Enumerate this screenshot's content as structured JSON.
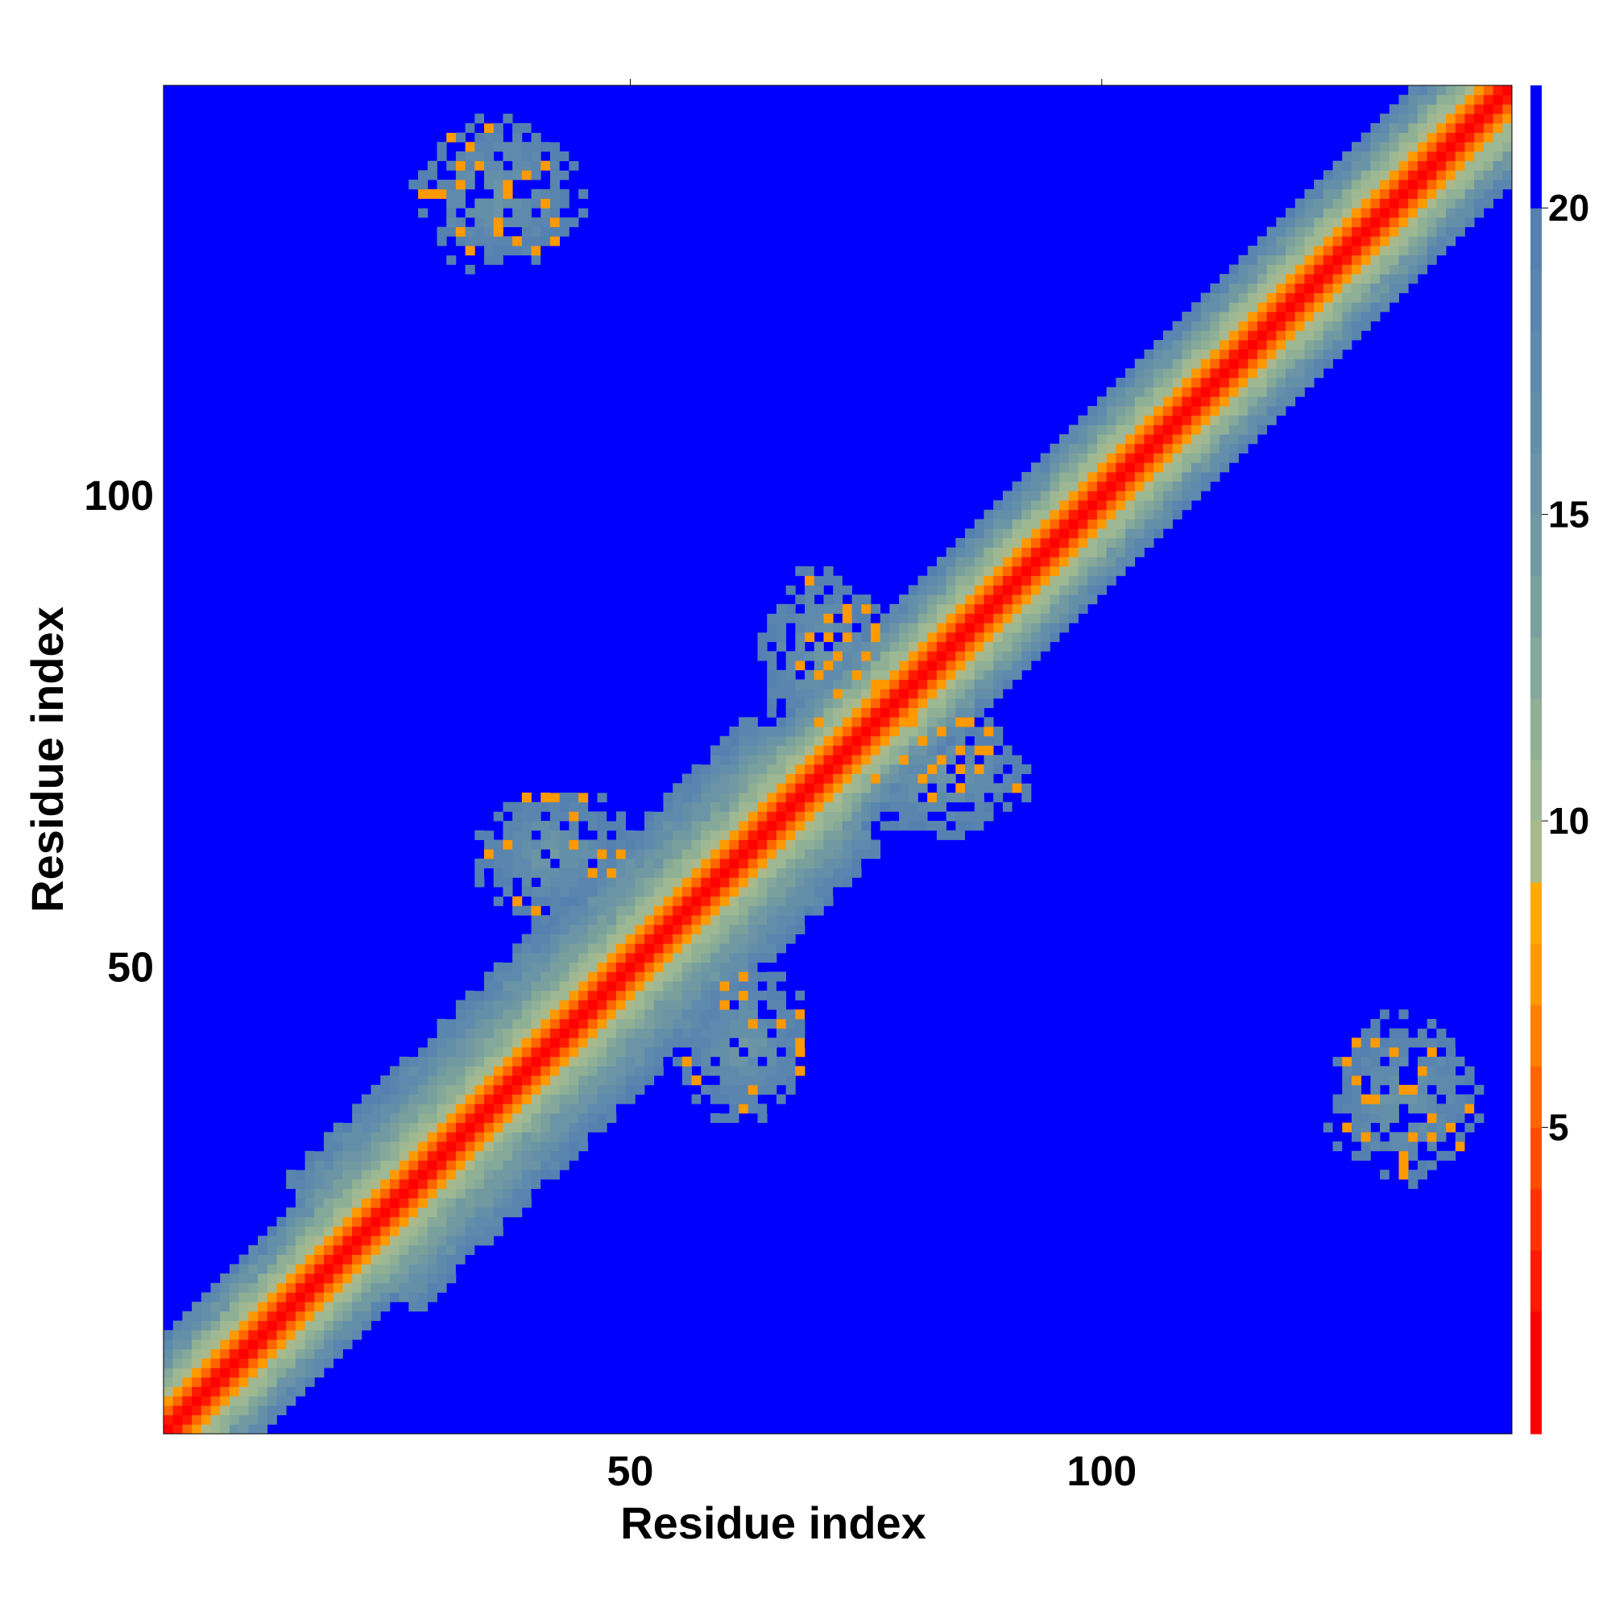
{
  "chart_data": {
    "type": "heatmap",
    "title": "",
    "xlabel": "Residue index",
    "ylabel": "Residue index",
    "n_residues": 143,
    "xlim": [
      1,
      143
    ],
    "ylim": [
      1,
      143
    ],
    "x_ticks": [
      50,
      100
    ],
    "y_ticks": [
      50,
      100
    ],
    "colorbar": {
      "min": 0,
      "max": 22,
      "ticks": [
        5,
        10,
        15,
        20
      ],
      "colors": [
        {
          "upto": 2,
          "color": "#ff0000"
        },
        {
          "upto": 3,
          "color": "#ff1a00"
        },
        {
          "upto": 4,
          "color": "#ff3300"
        },
        {
          "upto": 5,
          "color": "#ff4d00"
        },
        {
          "upto": 6,
          "color": "#ff6600"
        },
        {
          "upto": 7,
          "color": "#ff8000"
        },
        {
          "upto": 8,
          "color": "#ff9900"
        },
        {
          "upto": 9,
          "color": "#ffaa00"
        },
        {
          "upto": 10,
          "color": "#a9b98c"
        },
        {
          "upto": 11,
          "color": "#9db893"
        },
        {
          "upto": 12,
          "color": "#8fb095"
        },
        {
          "upto": 13,
          "color": "#84a89a"
        },
        {
          "upto": 14,
          "color": "#7aa09e"
        },
        {
          "upto": 15,
          "color": "#7199a2"
        },
        {
          "upto": 16,
          "color": "#6b94a6"
        },
        {
          "upto": 17,
          "color": "#648fa9"
        },
        {
          "upto": 18,
          "color": "#5e8aad"
        },
        {
          "upto": 19,
          "color": "#5985af"
        },
        {
          "upto": 20,
          "color": "#5581b1"
        },
        {
          "upto": 22,
          "color": "#0000ff"
        }
      ]
    },
    "diagonal_band": {
      "description_values": "distance grows with |i-j|",
      "red_width": 1.5,
      "orange_width": 2.5,
      "green_width": 7,
      "steel_width": 10
    },
    "contact_clusters": [
      {
        "i_center": 36,
        "j_center": 132,
        "i_range": [
          26,
          47
        ],
        "j_range": [
          123,
          142
        ]
      },
      {
        "i_center": 132,
        "j_center": 36,
        "i_range": [
          123,
          142
        ],
        "j_range": [
          26,
          47
        ]
      },
      {
        "i_center": 42,
        "j_center": 62,
        "i_range": [
          30,
          50
        ],
        "j_range": [
          53,
          70
        ]
      },
      {
        "i_center": 62,
        "j_center": 42,
        "i_range": [
          53,
          70
        ],
        "j_range": [
          30,
          50
        ]
      },
      {
        "i_center": 70,
        "j_center": 83,
        "i_range": [
          64,
          80
        ],
        "j_range": [
          70,
          92
        ]
      },
      {
        "i_center": 83,
        "j_center": 70,
        "i_range": [
          70,
          92
        ],
        "j_range": [
          64,
          80
        ]
      }
    ]
  }
}
